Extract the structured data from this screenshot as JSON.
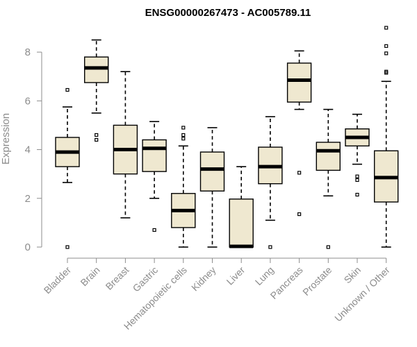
{
  "chart_data": {
    "type": "boxplot",
    "title": "ENSG00000267473 - AC005789.11",
    "ylabel": "Expression",
    "xlabel": "",
    "ylim": [
      0,
      9
    ],
    "yticks": [
      0,
      2,
      4,
      6,
      8
    ],
    "grid": false,
    "box_color": "#efe8d0",
    "categories": [
      "Bladder",
      "Brain",
      "Breast",
      "Gastric",
      "Hematopoietic cells",
      "Kidney",
      "Liver",
      "Lung",
      "Pancreas",
      "Prostate",
      "Skin",
      "Unknown / Other"
    ],
    "boxes": [
      {
        "category": "Bladder",
        "min": 2.65,
        "q1": 3.3,
        "median": 3.9,
        "q3": 4.5,
        "max": 5.75,
        "outliers": [
          6.45,
          0.0
        ]
      },
      {
        "category": "Brain",
        "min": 5.5,
        "q1": 6.75,
        "median": 7.35,
        "q3": 7.8,
        "max": 8.5,
        "outliers": [
          4.6,
          4.4
        ]
      },
      {
        "category": "Breast",
        "min": 1.2,
        "q1": 3.0,
        "median": 4.0,
        "q3": 5.0,
        "max": 7.2,
        "outliers": []
      },
      {
        "category": "Gastric",
        "min": 2.0,
        "q1": 3.1,
        "median": 4.05,
        "q3": 4.4,
        "max": 5.15,
        "outliers": [
          0.7
        ]
      },
      {
        "category": "Hematopoietic cells",
        "min": 0.0,
        "q1": 0.8,
        "median": 1.5,
        "q3": 2.2,
        "max": 4.15,
        "outliers": [
          4.9,
          4.6,
          4.45
        ]
      },
      {
        "category": "Kidney",
        "min": 0.0,
        "q1": 2.3,
        "median": 3.2,
        "q3": 3.9,
        "max": 4.9,
        "outliers": []
      },
      {
        "category": "Liver",
        "min": 0.0,
        "q1": 0.0,
        "median": 0.03,
        "q3": 1.97,
        "max": 3.3,
        "outliers": []
      },
      {
        "category": "Lung",
        "min": 1.1,
        "q1": 2.6,
        "median": 3.3,
        "q3": 4.1,
        "max": 5.35,
        "outliers": [
          0.0
        ]
      },
      {
        "category": "Pancreas",
        "min": 5.65,
        "q1": 5.95,
        "median": 6.85,
        "q3": 7.55,
        "max": 8.05,
        "outliers": [
          3.05,
          1.35
        ]
      },
      {
        "category": "Prostate",
        "min": 2.1,
        "q1": 3.15,
        "median": 3.95,
        "q3": 4.3,
        "max": 5.65,
        "outliers": [
          0.0
        ]
      },
      {
        "category": "Skin",
        "min": 3.4,
        "q1": 4.15,
        "median": 4.5,
        "q3": 4.85,
        "max": 5.45,
        "outliers": [
          2.9,
          2.75,
          2.15
        ]
      },
      {
        "category": "Unknown / Other",
        "min": 0.0,
        "q1": 1.85,
        "median": 2.85,
        "q3": 3.95,
        "max": 6.8,
        "outliers": [
          9.0,
          8.25,
          7.95,
          7.2,
          7.15
        ]
      }
    ]
  }
}
